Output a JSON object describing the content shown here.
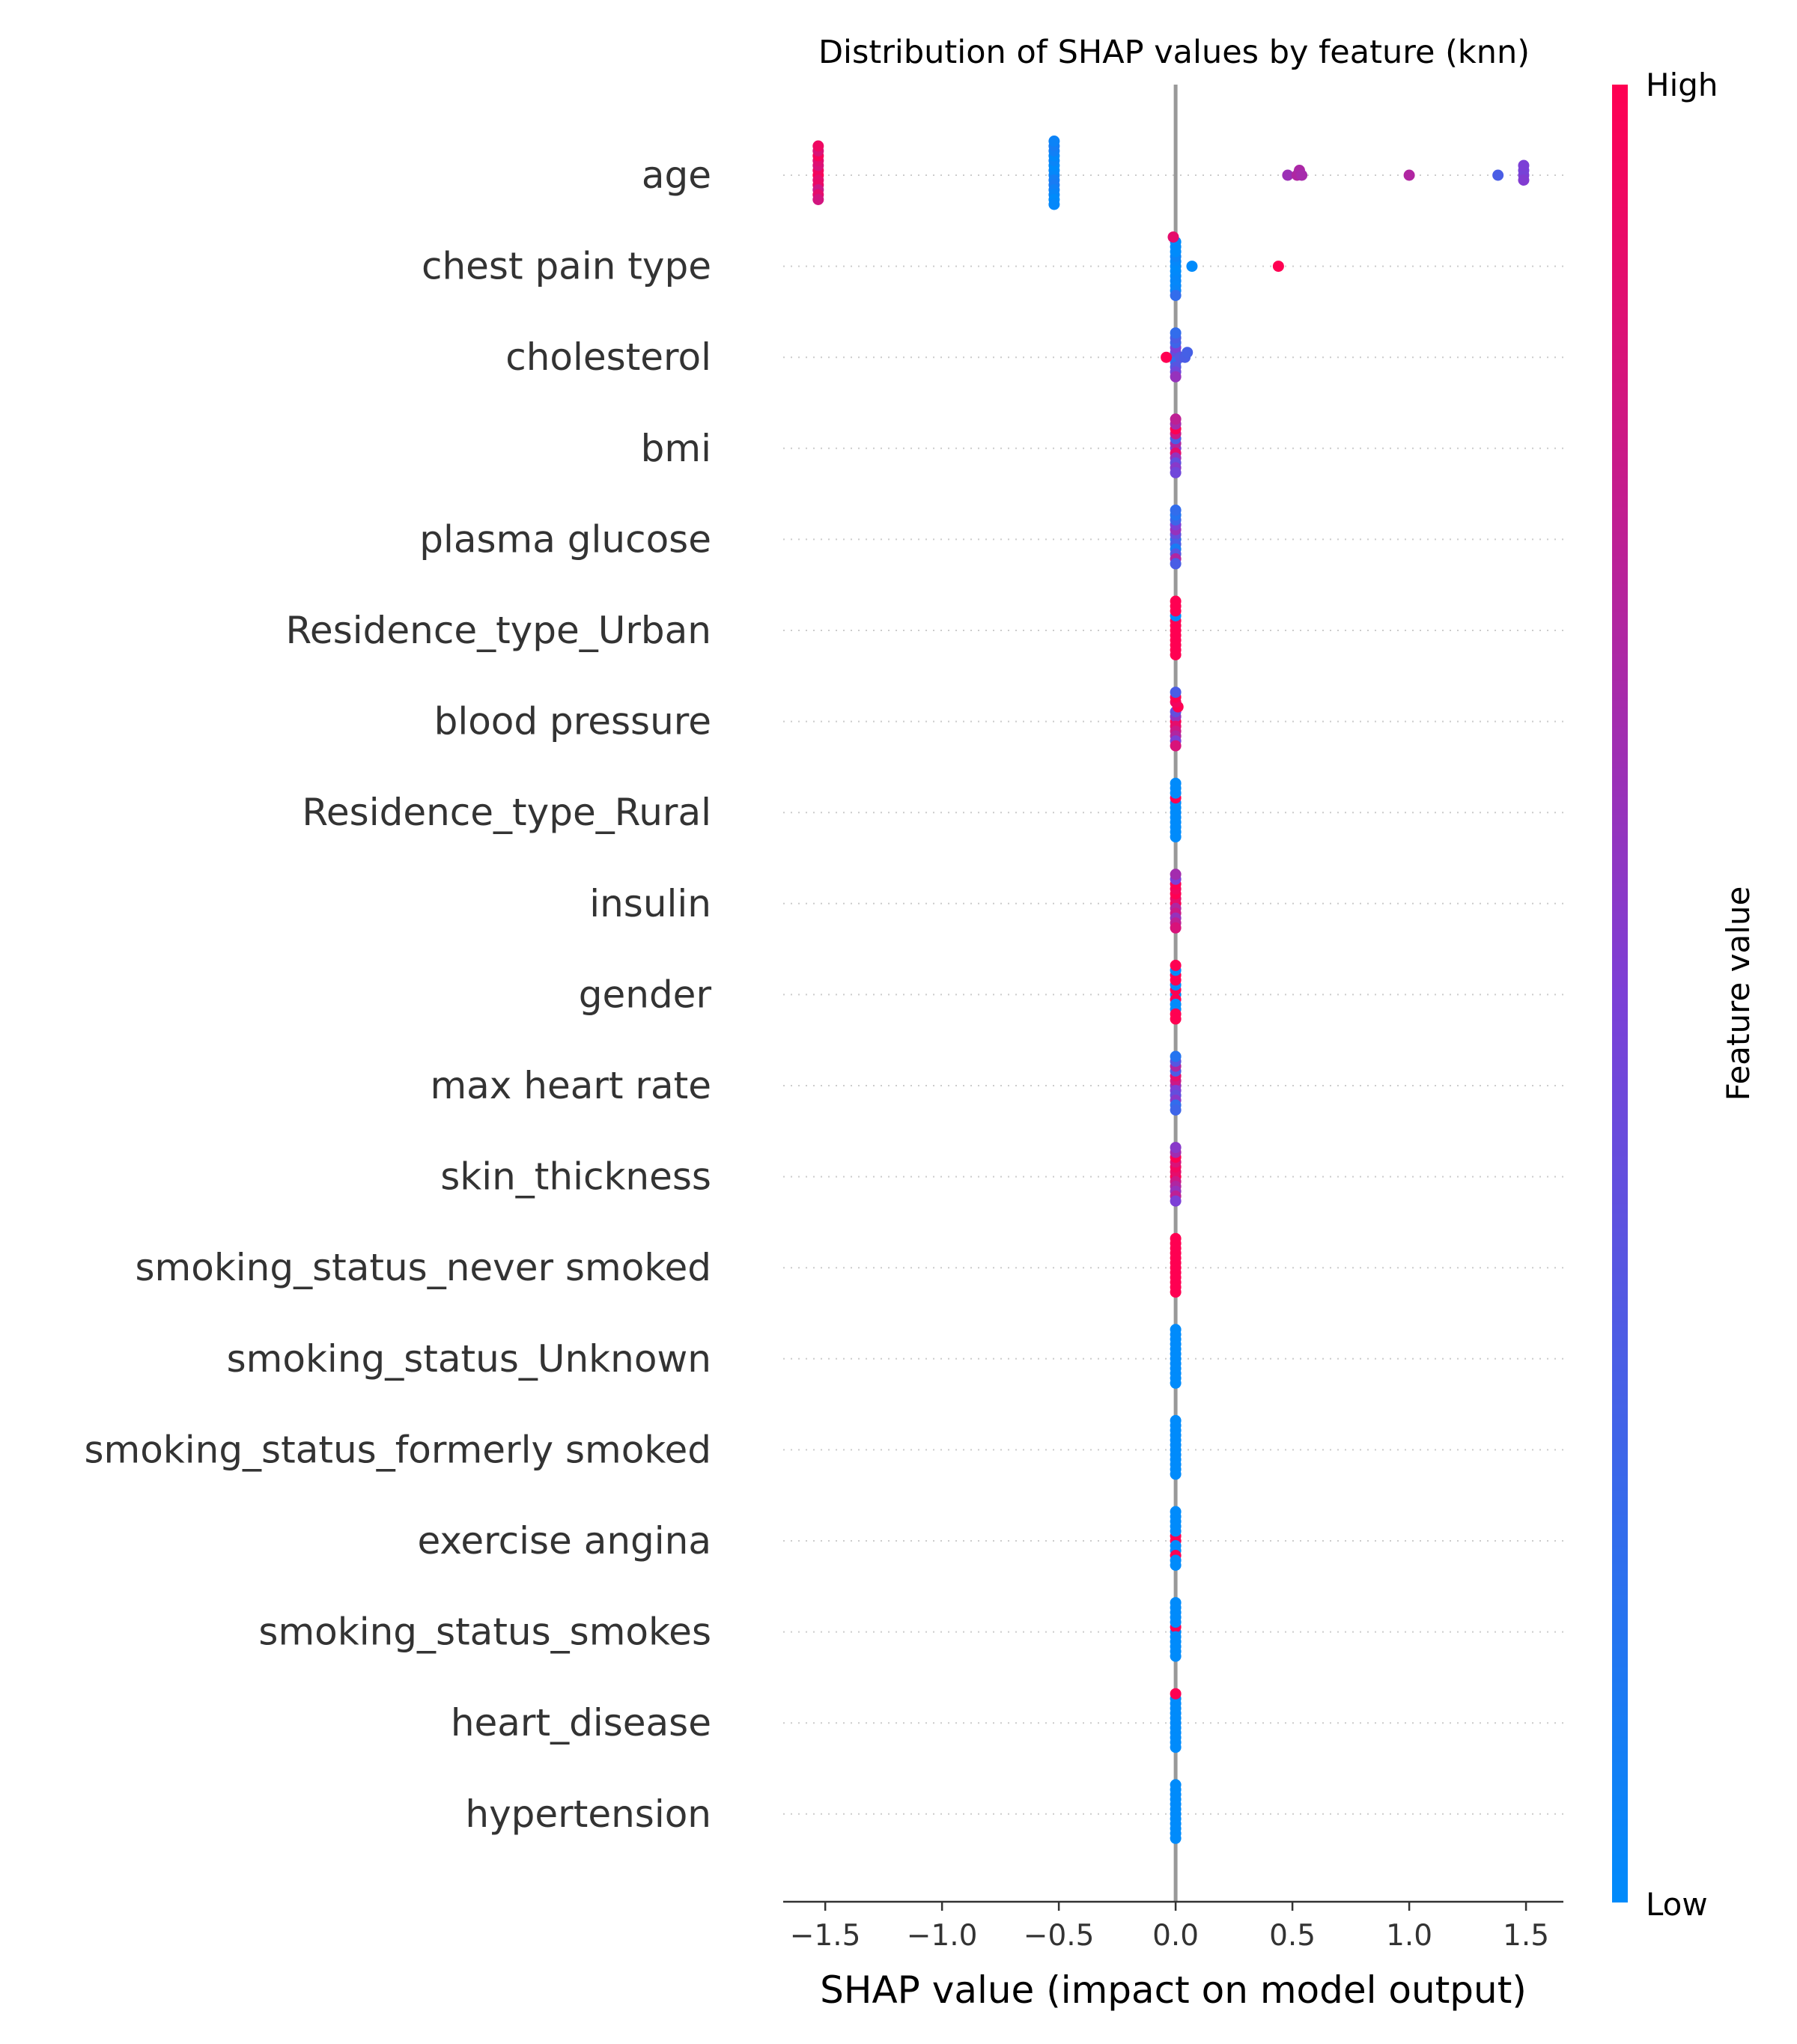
{
  "chart_data": {
    "type": "scatter",
    "title": "Distribution of SHAP values by feature (knn)",
    "xlabel": "SHAP value (impact on model output)",
    "xlim": [
      -1.68,
      1.66
    ],
    "xticks": [
      -1.5,
      -1.0,
      -0.5,
      0.0,
      0.5,
      1.0,
      1.5
    ],
    "xtick_labels": [
      "−1.5",
      "−1.0",
      "−0.5",
      "0.0",
      "0.5",
      "1.0",
      "1.5"
    ],
    "grid": false,
    "colorbar": {
      "label": "Feature value",
      "high_label": "High",
      "low_label": "Low",
      "low_color": "#008bfb",
      "mid_color": "#7c3fd6",
      "high_color": "#ff0052"
    },
    "features": [
      {
        "name": "age",
        "points": [
          [
            -1.53,
            1.0
          ],
          [
            -1.53,
            0.95
          ],
          [
            -1.53,
            0.9
          ],
          [
            -1.53,
            0.85
          ],
          [
            -1.53,
            0.92
          ],
          [
            -1.53,
            0.88
          ],
          [
            -1.53,
            0.8
          ],
          [
            -1.53,
            0.97
          ],
          [
            -1.53,
            0.9
          ],
          [
            -1.53,
            0.86
          ],
          [
            -1.53,
            0.83
          ],
          [
            -1.53,
            0.94
          ],
          [
            -0.52,
            0.05
          ],
          [
            -0.52,
            0.02
          ],
          [
            -0.52,
            0.08
          ],
          [
            -0.52,
            0.0
          ],
          [
            -0.52,
            0.1
          ],
          [
            -0.52,
            0.04
          ],
          [
            -0.52,
            0.06
          ],
          [
            -0.52,
            0.01
          ],
          [
            -0.52,
            0.03
          ],
          [
            -0.52,
            0.07
          ],
          [
            -0.52,
            0.0
          ],
          [
            -0.52,
            0.09
          ],
          [
            -0.52,
            0.02
          ],
          [
            -0.52,
            0.05
          ],
          [
            0.48,
            0.62
          ],
          [
            0.52,
            0.7
          ],
          [
            0.53,
            0.68
          ],
          [
            0.54,
            0.66
          ],
          [
            1.0,
            0.7
          ],
          [
            1.38,
            0.3
          ],
          [
            1.49,
            0.5
          ],
          [
            1.49,
            0.48
          ],
          [
            1.49,
            0.52
          ],
          [
            1.49,
            0.5
          ]
        ]
      },
      {
        "name": "chest pain type",
        "points": [
          [
            0.0,
            0.0
          ],
          [
            0.0,
            0.02
          ],
          [
            0.0,
            0.0
          ],
          [
            0.0,
            0.05
          ],
          [
            0.0,
            0.01
          ],
          [
            0.0,
            0.0
          ],
          [
            0.0,
            0.03
          ],
          [
            0.0,
            0.0
          ],
          [
            0.0,
            0.02
          ],
          [
            0.0,
            0.0
          ],
          [
            0.0,
            0.04
          ],
          [
            -0.01,
            0.9
          ],
          [
            0.0,
            0.2
          ],
          [
            0.07,
            0.0
          ],
          [
            0.44,
            1.0
          ]
        ]
      },
      {
        "name": "cholesterol",
        "points": [
          [
            0.0,
            0.3
          ],
          [
            0.0,
            0.4
          ],
          [
            0.0,
            0.2
          ],
          [
            0.0,
            0.5
          ],
          [
            0.0,
            0.35
          ],
          [
            0.0,
            0.25
          ],
          [
            0.0,
            0.45
          ],
          [
            0.0,
            0.3
          ],
          [
            -0.04,
            1.0
          ],
          [
            0.02,
            0.35
          ],
          [
            0.04,
            0.3
          ],
          [
            0.05,
            0.28
          ],
          [
            0.0,
            0.6
          ],
          [
            0.0,
            0.2
          ]
        ]
      },
      {
        "name": "bmi",
        "points": [
          [
            0.0,
            0.5
          ],
          [
            0.0,
            0.7
          ],
          [
            0.0,
            0.9
          ],
          [
            0.0,
            0.3
          ],
          [
            0.0,
            0.6
          ],
          [
            0.0,
            0.8
          ],
          [
            0.0,
            0.4
          ],
          [
            0.0,
            1.0
          ],
          [
            0.0,
            0.55
          ],
          [
            0.0,
            0.65
          ],
          [
            0.0,
            0.45
          ],
          [
            0.0,
            0.75
          ]
        ]
      },
      {
        "name": "plasma glucose",
        "points": [
          [
            0.0,
            0.2
          ],
          [
            0.0,
            0.4
          ],
          [
            0.0,
            0.3
          ],
          [
            0.0,
            0.6
          ],
          [
            0.0,
            0.1
          ],
          [
            0.0,
            0.5
          ],
          [
            0.0,
            0.35
          ],
          [
            0.0,
            0.25
          ],
          [
            0.0,
            0.7
          ],
          [
            0.0,
            0.15
          ],
          [
            0.0,
            0.3
          ],
          [
            0.0,
            0.2
          ]
        ]
      },
      {
        "name": "Residence_type_Urban",
        "points": [
          [
            0.0,
            1.0
          ],
          [
            0.0,
            1.0
          ],
          [
            0.0,
            1.0
          ],
          [
            0.0,
            1.0
          ],
          [
            0.0,
            1.0
          ],
          [
            0.0,
            0.0
          ],
          [
            0.0,
            1.0
          ],
          [
            0.0,
            1.0
          ],
          [
            0.0,
            1.0
          ],
          [
            0.0,
            1.0
          ],
          [
            0.0,
            1.0
          ],
          [
            0.0,
            1.0
          ]
        ]
      },
      {
        "name": "blood pressure",
        "points": [
          [
            0.0,
            1.0
          ],
          [
            0.0,
            0.6
          ],
          [
            0.0,
            0.9
          ],
          [
            0.0,
            0.4
          ],
          [
            0.0,
            0.8
          ],
          [
            0.01,
            1.0
          ],
          [
            0.0,
            0.7
          ],
          [
            0.0,
            0.95
          ],
          [
            0.0,
            0.5
          ],
          [
            0.0,
            1.0
          ],
          [
            0.0,
            0.85
          ],
          [
            0.0,
            0.3
          ]
        ]
      },
      {
        "name": "Residence_type_Rural",
        "points": [
          [
            0.0,
            0.0
          ],
          [
            0.0,
            0.0
          ],
          [
            0.0,
            0.0
          ],
          [
            0.0,
            0.0
          ],
          [
            0.0,
            0.0
          ],
          [
            0.0,
            1.0
          ],
          [
            0.0,
            0.0
          ],
          [
            0.0,
            0.0
          ],
          [
            0.0,
            0.0
          ],
          [
            0.0,
            0.0
          ],
          [
            0.0,
            0.0
          ],
          [
            0.0,
            0.0
          ]
        ]
      },
      {
        "name": "insulin",
        "points": [
          [
            0.0,
            1.0
          ],
          [
            0.0,
            0.9
          ],
          [
            0.0,
            0.7
          ],
          [
            0.0,
            1.0
          ],
          [
            0.0,
            0.8
          ],
          [
            0.0,
            0.95
          ],
          [
            0.0,
            0.6
          ],
          [
            0.0,
            1.0
          ],
          [
            0.0,
            0.75
          ],
          [
            0.0,
            0.5
          ],
          [
            0.0,
            0.85
          ],
          [
            0.0,
            0.65
          ]
        ]
      },
      {
        "name": "gender",
        "points": [
          [
            0.0,
            0.0
          ],
          [
            0.0,
            1.0
          ],
          [
            0.0,
            1.0
          ],
          [
            0.0,
            0.0
          ],
          [
            0.0,
            0.0
          ],
          [
            0.0,
            1.0
          ],
          [
            0.0,
            0.0
          ],
          [
            0.0,
            1.0
          ],
          [
            0.0,
            1.0
          ],
          [
            0.0,
            0.0
          ],
          [
            0.0,
            1.0
          ],
          [
            0.0,
            1.0
          ]
        ]
      },
      {
        "name": "max heart rate",
        "points": [
          [
            0.0,
            0.6
          ],
          [
            0.0,
            0.8
          ],
          [
            0.0,
            0.5
          ],
          [
            0.0,
            0.9
          ],
          [
            0.0,
            0.4
          ],
          [
            0.0,
            0.3
          ],
          [
            0.0,
            0.55
          ],
          [
            0.0,
            0.7
          ],
          [
            0.0,
            0.2
          ],
          [
            0.0,
            0.35
          ],
          [
            0.0,
            0.25
          ],
          [
            0.0,
            0.15
          ]
        ]
      },
      {
        "name": "skin_thickness",
        "points": [
          [
            0.0,
            1.0
          ],
          [
            0.0,
            0.9
          ],
          [
            0.0,
            0.8
          ],
          [
            0.0,
            0.95
          ],
          [
            0.0,
            0.7
          ],
          [
            0.0,
            0.85
          ],
          [
            0.0,
            0.6
          ],
          [
            0.0,
            1.0
          ],
          [
            0.0,
            0.75
          ],
          [
            0.0,
            0.65
          ],
          [
            0.0,
            0.5
          ],
          [
            0.0,
            0.55
          ]
        ]
      },
      {
        "name": "smoking_status_never smoked",
        "points": [
          [
            0.0,
            1.0
          ],
          [
            0.0,
            1.0
          ],
          [
            0.0,
            1.0
          ],
          [
            0.0,
            1.0
          ],
          [
            0.0,
            1.0
          ],
          [
            0.0,
            1.0
          ],
          [
            0.0,
            1.0
          ],
          [
            0.0,
            1.0
          ],
          [
            0.0,
            1.0
          ],
          [
            0.0,
            1.0
          ],
          [
            0.0,
            1.0
          ],
          [
            0.0,
            1.0
          ]
        ]
      },
      {
        "name": "smoking_status_Unknown",
        "points": [
          [
            0.0,
            0.0
          ],
          [
            0.0,
            0.0
          ],
          [
            0.0,
            0.0
          ],
          [
            0.0,
            0.0
          ],
          [
            0.0,
            0.0
          ],
          [
            0.0,
            0.0
          ],
          [
            0.0,
            0.0
          ],
          [
            0.0,
            0.0
          ],
          [
            0.0,
            0.0
          ],
          [
            0.0,
            0.0
          ],
          [
            0.0,
            0.0
          ],
          [
            0.0,
            0.0
          ]
        ]
      },
      {
        "name": "smoking_status_formerly smoked",
        "points": [
          [
            0.0,
            0.0
          ],
          [
            0.0,
            0.0
          ],
          [
            0.0,
            0.0
          ],
          [
            0.0,
            0.0
          ],
          [
            0.0,
            0.0
          ],
          [
            0.0,
            0.0
          ],
          [
            0.0,
            0.0
          ],
          [
            0.0,
            0.0
          ],
          [
            0.0,
            0.0
          ],
          [
            0.0,
            0.0
          ],
          [
            0.0,
            0.0
          ],
          [
            0.0,
            0.0
          ]
        ]
      },
      {
        "name": "exercise angina",
        "points": [
          [
            0.0,
            1.0
          ],
          [
            0.0,
            1.0
          ],
          [
            0.0,
            0.0
          ],
          [
            0.0,
            0.0
          ],
          [
            0.0,
            0.0
          ],
          [
            0.0,
            0.0
          ],
          [
            0.0,
            1.0
          ],
          [
            0.0,
            0.0
          ],
          [
            0.0,
            0.0
          ],
          [
            0.0,
            0.0
          ],
          [
            0.0,
            0.0
          ],
          [
            0.0,
            0.0
          ]
        ]
      },
      {
        "name": "smoking_status_smokes",
        "points": [
          [
            0.0,
            0.0
          ],
          [
            0.0,
            1.0
          ],
          [
            0.0,
            0.0
          ],
          [
            0.0,
            0.0
          ],
          [
            0.0,
            0.0
          ],
          [
            0.0,
            0.0
          ],
          [
            0.0,
            0.0
          ],
          [
            0.0,
            0.0
          ],
          [
            0.0,
            0.0
          ],
          [
            0.0,
            0.0
          ],
          [
            0.0,
            0.0
          ],
          [
            0.0,
            0.0
          ]
        ]
      },
      {
        "name": "heart_disease",
        "points": [
          [
            0.0,
            0.0
          ],
          [
            0.0,
            0.0
          ],
          [
            0.0,
            0.0
          ],
          [
            0.0,
            0.0
          ],
          [
            0.0,
            0.0
          ],
          [
            0.0,
            0.0
          ],
          [
            0.0,
            0.0
          ],
          [
            0.0,
            0.0
          ],
          [
            0.0,
            0.0
          ],
          [
            0.0,
            0.0
          ],
          [
            0.0,
            0.0
          ],
          [
            0.0,
            1.0
          ]
        ]
      },
      {
        "name": "hypertension",
        "points": [
          [
            0.0,
            0.0
          ],
          [
            0.0,
            0.0
          ],
          [
            0.0,
            0.0
          ],
          [
            0.0,
            0.0
          ],
          [
            0.0,
            0.0
          ],
          [
            0.0,
            0.0
          ],
          [
            0.0,
            0.0
          ],
          [
            0.0,
            0.0
          ],
          [
            0.0,
            0.0
          ],
          [
            0.0,
            0.0
          ],
          [
            0.0,
            0.0
          ],
          [
            0.0,
            0.0
          ]
        ]
      }
    ]
  }
}
